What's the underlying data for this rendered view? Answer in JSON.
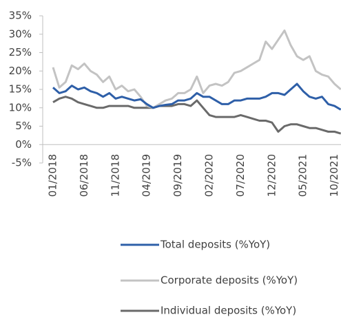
{
  "chart_data": {
    "type": "line",
    "categories": [
      "01/2018",
      null,
      null,
      null,
      null,
      "06/2018",
      null,
      null,
      null,
      null,
      "11/2018",
      null,
      null,
      null,
      null,
      "04/2019",
      null,
      null,
      null,
      null,
      "09/2019",
      null,
      null,
      null,
      null,
      "02/2020",
      null,
      null,
      null,
      null,
      "07/2020",
      null,
      null,
      null,
      null,
      "12/2020",
      null,
      null,
      null,
      null,
      "05/2021",
      null,
      null,
      null,
      null,
      "10/2021",
      null
    ],
    "series": [
      {
        "name": "Total deposits (%YoY)",
        "color": "#2e5fa8",
        "values": [
          15.5,
          14,
          14.5,
          16,
          15,
          15.5,
          14.5,
          14,
          13,
          14,
          12.5,
          13,
          12.5,
          12,
          12.3,
          11,
          10,
          10.5,
          10.8,
          11,
          12,
          12,
          12.5,
          14,
          13,
          13,
          12,
          11,
          11,
          12,
          12,
          12.5,
          12.5,
          12.5,
          13,
          14,
          14,
          13.5,
          15,
          16.5,
          14.5,
          13,
          12.5,
          13,
          11,
          10.5,
          9.5
        ]
      },
      {
        "name": "Corporate deposits (%YoY)",
        "color": "#c3c3c3",
        "values": [
          21,
          15.5,
          17,
          21.5,
          20.5,
          22,
          20,
          19,
          17,
          18.5,
          15,
          16,
          14.5,
          15,
          13,
          10.5,
          10,
          11,
          12,
          12.5,
          14,
          14,
          15,
          18.5,
          14,
          16,
          16.5,
          16,
          17,
          19.5,
          20,
          21,
          22,
          23,
          28,
          26,
          28.5,
          31,
          27,
          24,
          23,
          24,
          20,
          19,
          18.5,
          16.5,
          15
        ]
      },
      {
        "name": "Individual deposits (%YoY)",
        "color": "#6a6a6a",
        "values": [
          11.5,
          12.5,
          13,
          12.5,
          11.5,
          11,
          10.5,
          10,
          10,
          10.5,
          10.5,
          10.5,
          10.5,
          10,
          10,
          10,
          10,
          10.5,
          10.5,
          10.5,
          11,
          11,
          10.5,
          12,
          10,
          8,
          7.5,
          7.5,
          7.5,
          7.5,
          8,
          7.5,
          7,
          6.5,
          6.5,
          6,
          3.5,
          5,
          5.5,
          5.5,
          5,
          4.5,
          4.5,
          4,
          3.5,
          3.5,
          3
        ]
      }
    ],
    "ylim": [
      -5,
      35
    ],
    "yticks": [
      {
        "value": -5,
        "label": "-5%"
      },
      {
        "value": 0,
        "label": "0%"
      },
      {
        "value": 5,
        "label": "5%"
      },
      {
        "value": 10,
        "label": "10%"
      },
      {
        "value": 15,
        "label": "15%"
      },
      {
        "value": 20,
        "label": "20%"
      },
      {
        "value": 25,
        "label": "25%"
      },
      {
        "value": 30,
        "label": "30%"
      },
      {
        "value": 35,
        "label": "35%"
      }
    ],
    "legend": "bottom"
  }
}
